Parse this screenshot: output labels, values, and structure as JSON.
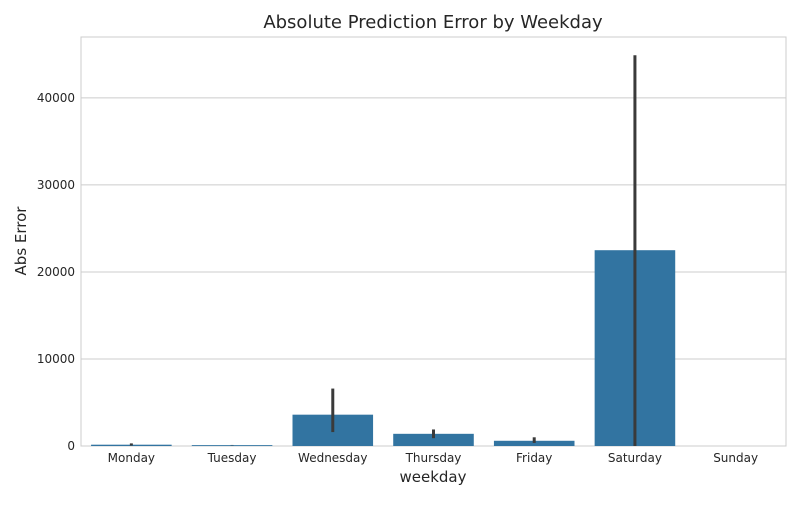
{
  "chart_data": {
    "type": "bar",
    "title": "Absolute Prediction Error by Weekday",
    "xlabel": "weekday",
    "ylabel": "Abs Error",
    "categories": [
      "Monday",
      "Tuesday",
      "Wednesday",
      "Thursday",
      "Friday",
      "Saturday",
      "Sunday"
    ],
    "values": [
      150,
      100,
      3600,
      1400,
      600,
      22500,
      0
    ],
    "error_low": [
      50,
      80,
      1600,
      900,
      350,
      0,
      0
    ],
    "error_high": [
      300,
      120,
      6600,
      1900,
      1000,
      44900,
      0
    ],
    "ylim": [
      0,
      47000
    ],
    "yticks": [
      0,
      10000,
      20000,
      30000,
      40000
    ],
    "ytick_labels": [
      "0",
      "10000",
      "20000",
      "30000",
      "40000"
    ],
    "grid": "horizontal",
    "bar_color": "#3274a1",
    "errbar_color": "#3a3a3a"
  }
}
